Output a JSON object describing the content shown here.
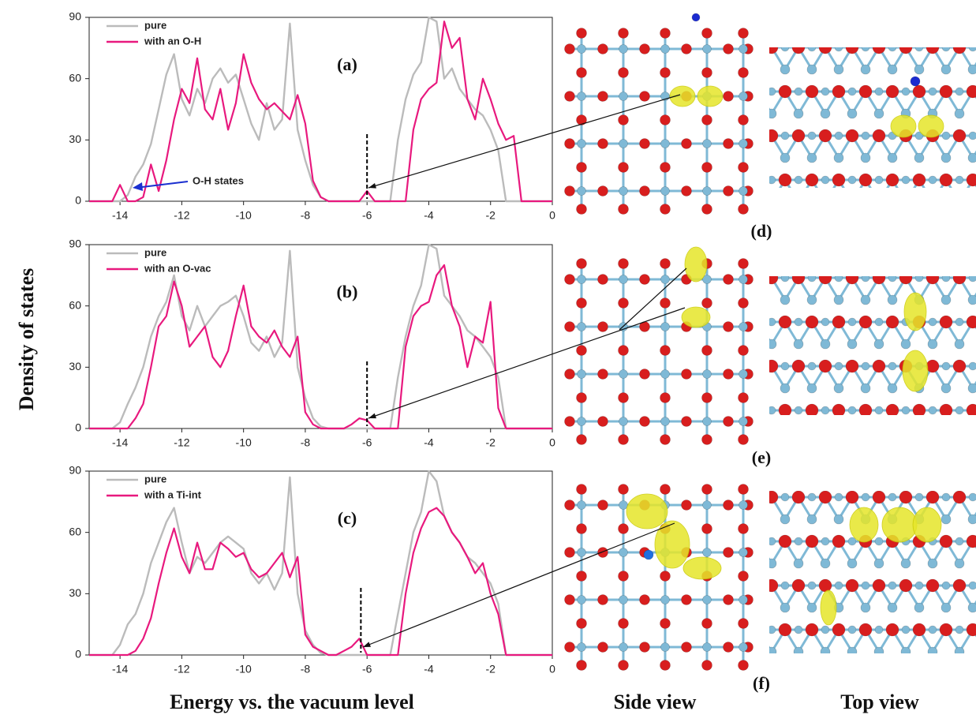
{
  "chart_data": [
    {
      "type": "line",
      "panel_label": "(a)",
      "xlim": [
        -15,
        0
      ],
      "xticks": [
        -14,
        -12,
        -10,
        -8,
        -6,
        -4,
        -2,
        0
      ],
      "ylim": [
        0,
        90
      ],
      "yticks": [
        0,
        30,
        60,
        90
      ],
      "marker_x": -6,
      "annotation": "O-H states",
      "x": [
        -15,
        -14.75,
        -14.5,
        -14.25,
        -14,
        -13.75,
        -13.5,
        -13.25,
        -13,
        -12.75,
        -12.5,
        -12.25,
        -12,
        -11.75,
        -11.5,
        -11.25,
        -11,
        -10.75,
        -10.5,
        -10.25,
        -10,
        -9.75,
        -9.5,
        -9.25,
        -9,
        -8.75,
        -8.5,
        -8.25,
        -8,
        -7.75,
        -7.5,
        -7.25,
        -7,
        -6.75,
        -6.5,
        -6.25,
        -6,
        -5.75,
        -5.5,
        -5.25,
        -5,
        -4.75,
        -4.5,
        -4.25,
        -4,
        -3.75,
        -3.5,
        -3.25,
        -3,
        -2.75,
        -2.5,
        -2.25,
        -2,
        -1.75,
        -1.5,
        -1.25,
        -1,
        -0.75,
        -0.5,
        -0.25,
        0
      ],
      "series": [
        {
          "name": "pure",
          "color": "#bbbbbb",
          "values": [
            0,
            0,
            0,
            0,
            0,
            3,
            12,
            18,
            28,
            45,
            62,
            72,
            50,
            42,
            55,
            48,
            60,
            65,
            58,
            62,
            50,
            38,
            30,
            48,
            35,
            40,
            87,
            35,
            20,
            8,
            2,
            0,
            0,
            0,
            0,
            0,
            0,
            0,
            0,
            0,
            30,
            50,
            62,
            68,
            90,
            88,
            60,
            65,
            55,
            50,
            45,
            42,
            35,
            25,
            0,
            0,
            0,
            0,
            0,
            0,
            0
          ]
        },
        {
          "name": "with an O-H",
          "color": "#e8197e",
          "values": [
            0,
            0,
            0,
            0,
            8,
            0,
            0,
            2,
            18,
            5,
            20,
            40,
            55,
            48,
            70,
            45,
            40,
            55,
            35,
            48,
            72,
            58,
            50,
            45,
            48,
            44,
            40,
            52,
            38,
            10,
            2,
            0,
            0,
            0,
            0,
            0,
            5,
            0,
            0,
            0,
            0,
            0,
            35,
            50,
            55,
            58,
            88,
            75,
            80,
            50,
            40,
            60,
            50,
            38,
            30,
            32,
            0,
            0,
            0,
            0,
            0
          ]
        }
      ]
    },
    {
      "type": "line",
      "panel_label": "(b)",
      "xlim": [
        -15,
        0
      ],
      "xticks": [
        -14,
        -12,
        -10,
        -8,
        -6,
        -4,
        -2,
        0
      ],
      "ylim": [
        0,
        90
      ],
      "yticks": [
        0,
        30,
        60,
        90
      ],
      "marker_x": -6,
      "x": [
        -15,
        -14.75,
        -14.5,
        -14.25,
        -14,
        -13.75,
        -13.5,
        -13.25,
        -13,
        -12.75,
        -12.5,
        -12.25,
        -12,
        -11.75,
        -11.5,
        -11.25,
        -11,
        -10.75,
        -10.5,
        -10.25,
        -10,
        -9.75,
        -9.5,
        -9.25,
        -9,
        -8.75,
        -8.5,
        -8.25,
        -8,
        -7.75,
        -7.5,
        -7.25,
        -7,
        -6.75,
        -6.5,
        -6.25,
        -6,
        -5.75,
        -5.5,
        -5.25,
        -5,
        -4.75,
        -4.5,
        -4.25,
        -4,
        -3.75,
        -3.5,
        -3.25,
        -3,
        -2.75,
        -2.5,
        -2.25,
        -2,
        -1.75,
        -1.5,
        -1.25,
        -1,
        -0.75,
        -0.5,
        -0.25,
        0
      ],
      "series": [
        {
          "name": "pure",
          "color": "#bbbbbb",
          "values": [
            0,
            0,
            0,
            0,
            3,
            12,
            20,
            30,
            45,
            55,
            62,
            75,
            55,
            48,
            60,
            50,
            55,
            60,
            62,
            65,
            55,
            42,
            38,
            45,
            35,
            42,
            87,
            30,
            15,
            5,
            1,
            0,
            0,
            0,
            0,
            0,
            0,
            0,
            0,
            0,
            25,
            45,
            60,
            70,
            90,
            88,
            65,
            60,
            55,
            48,
            45,
            40,
            35,
            25,
            0,
            0,
            0,
            0,
            0,
            0,
            0
          ]
        },
        {
          "name": "with an O-vac",
          "color": "#e8197e",
          "values": [
            0,
            0,
            0,
            0,
            0,
            0,
            5,
            12,
            30,
            50,
            55,
            72,
            60,
            40,
            45,
            50,
            35,
            30,
            38,
            55,
            70,
            50,
            45,
            42,
            48,
            40,
            35,
            45,
            8,
            2,
            0,
            0,
            0,
            0,
            2,
            5,
            4,
            0,
            0,
            0,
            0,
            40,
            55,
            60,
            62,
            75,
            80,
            60,
            50,
            30,
            45,
            42,
            62,
            10,
            0,
            0,
            0,
            0,
            0,
            0,
            0
          ]
        }
      ]
    },
    {
      "type": "line",
      "panel_label": "(c)",
      "xlim": [
        -15,
        0
      ],
      "xticks": [
        -14,
        -12,
        -10,
        -8,
        -6,
        -4,
        -2,
        0
      ],
      "ylim": [
        0,
        90
      ],
      "yticks": [
        0,
        30,
        60,
        90
      ],
      "marker_x": -6.2,
      "x": [
        -15,
        -14.75,
        -14.5,
        -14.25,
        -14,
        -13.75,
        -13.5,
        -13.25,
        -13,
        -12.75,
        -12.5,
        -12.25,
        -12,
        -11.75,
        -11.5,
        -11.25,
        -11,
        -10.75,
        -10.5,
        -10.25,
        -10,
        -9.75,
        -9.5,
        -9.25,
        -9,
        -8.75,
        -8.5,
        -8.25,
        -8,
        -7.75,
        -7.5,
        -7.25,
        -7,
        -6.75,
        -6.5,
        -6.25,
        -6,
        -5.75,
        -5.5,
        -5.25,
        -5,
        -4.75,
        -4.5,
        -4.25,
        -4,
        -3.75,
        -3.5,
        -3.25,
        -3,
        -2.75,
        -2.5,
        -2.25,
        -2,
        -1.75,
        -1.5,
        -1.25,
        -1,
        -0.75,
        -0.5,
        -0.25,
        0
      ],
      "series": [
        {
          "name": "pure",
          "color": "#bbbbbb",
          "values": [
            0,
            0,
            0,
            0,
            5,
            15,
            20,
            30,
            45,
            55,
            65,
            72,
            55,
            40,
            48,
            45,
            50,
            55,
            58,
            55,
            52,
            40,
            35,
            40,
            32,
            40,
            87,
            30,
            12,
            5,
            1,
            0,
            0,
            0,
            0,
            0,
            0,
            0,
            0,
            0,
            20,
            40,
            60,
            70,
            90,
            85,
            68,
            60,
            55,
            48,
            45,
            40,
            35,
            25,
            0,
            0,
            0,
            0,
            0,
            0,
            0
          ]
        },
        {
          "name": "with a Ti-int",
          "color": "#e8197e",
          "values": [
            0,
            0,
            0,
            0,
            0,
            0,
            2,
            8,
            18,
            35,
            50,
            62,
            48,
            40,
            55,
            42,
            42,
            55,
            52,
            48,
            50,
            42,
            38,
            40,
            45,
            50,
            38,
            48,
            10,
            4,
            2,
            0,
            0,
            2,
            4,
            8,
            0,
            0,
            0,
            0,
            0,
            30,
            50,
            62,
            70,
            72,
            68,
            60,
            55,
            48,
            40,
            45,
            30,
            20,
            0,
            0,
            0,
            0,
            0,
            0,
            0
          ]
        }
      ]
    }
  ],
  "figure": {
    "y_label": "Density of states",
    "x_label": "Energy vs. the vacuum level",
    "structure_labels": [
      "(d)",
      "(e)",
      "(f)"
    ],
    "side_view": "Side view",
    "top_view": "Top view"
  }
}
